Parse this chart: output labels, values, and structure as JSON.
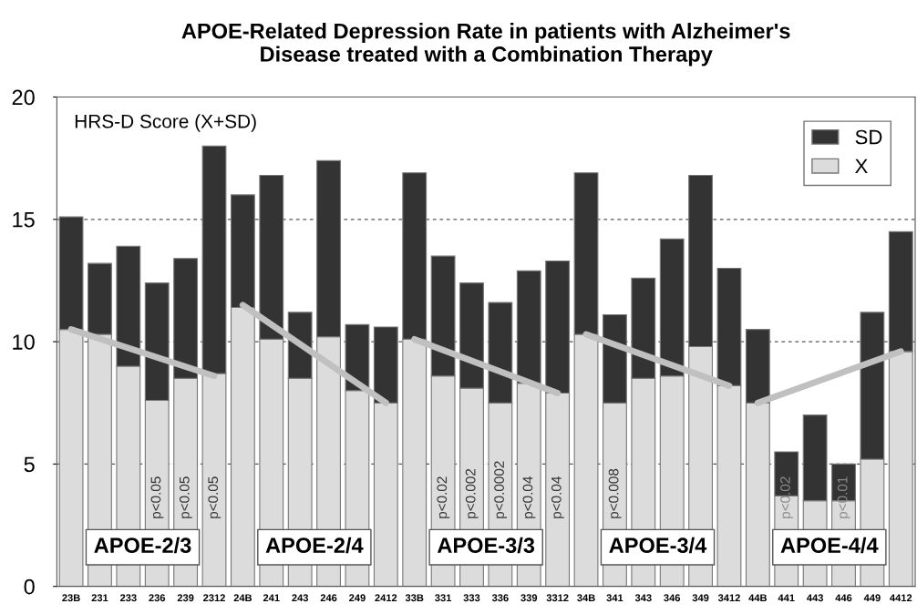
{
  "chart_data": {
    "type": "bar",
    "stacked": true,
    "title": "APOE-Related Depression Rate in patients with Alzheimer's\nDisease treated with a Combination Therapy",
    "ylabel": "HRS-D Score (X+SD)",
    "categories": [
      "23B",
      "231",
      "233",
      "236",
      "239",
      "2312",
      "24B",
      "241",
      "243",
      "246",
      "249",
      "2412",
      "33B",
      "331",
      "333",
      "336",
      "339",
      "3312",
      "34B",
      "341",
      "343",
      "346",
      "349",
      "3412",
      "44B",
      "441",
      "443",
      "446",
      "449",
      "4412"
    ],
    "series": [
      {
        "name": "X",
        "color": "#dcdcdc",
        "values": [
          10.5,
          10.3,
          9.0,
          7.6,
          8.5,
          8.7,
          11.4,
          10.1,
          8.5,
          10.2,
          8.0,
          7.5,
          10.1,
          8.6,
          8.1,
          7.5,
          8.3,
          7.9,
          10.3,
          7.5,
          8.5,
          8.6,
          9.8,
          8.2,
          7.5,
          3.7,
          3.5,
          3.5,
          5.2,
          9.6
        ],
        "value_labels": [
          null,
          null,
          null,
          "p<0.05",
          "p<0.05",
          "p<0.05",
          null,
          null,
          null,
          null,
          null,
          null,
          null,
          "p<0.02",
          "p<0.002",
          "p<0.0002",
          "p<0.04",
          "p<0.04",
          null,
          "p<0.008",
          null,
          null,
          null,
          null,
          null,
          "p<0.02",
          null,
          "p<0.01",
          null,
          null
        ]
      },
      {
        "name": "SD",
        "color": "#333333",
        "values": [
          4.6,
          2.9,
          4.9,
          4.8,
          4.9,
          9.3,
          4.6,
          6.7,
          2.7,
          7.2,
          2.7,
          3.1,
          6.8,
          4.9,
          4.3,
          4.1,
          4.6,
          5.4,
          6.6,
          3.6,
          4.1,
          5.6,
          7.0,
          4.8,
          3.0,
          1.8,
          3.5,
          1.5,
          6.0,
          4.9
        ]
      },
      {
        "type": "line",
        "color": "#c0c0c0",
        "values": [
          10.5,
          null,
          null,
          null,
          null,
          8.6,
          null,
          null,
          null,
          null,
          null,
          null,
          null,
          null,
          null,
          null,
          null,
          null,
          null,
          null,
          null,
          null,
          null,
          null,
          null,
          null,
          null,
          null,
          null,
          null
        ]
      },
      {
        "type": "line",
        "color": "#c0c0c0",
        "values": [
          null,
          null,
          null,
          null,
          null,
          null,
          11.5,
          null,
          null,
          null,
          null,
          7.5,
          null,
          null,
          null,
          null,
          null,
          null,
          null,
          null,
          null,
          null,
          null,
          null,
          null,
          null,
          null,
          null,
          null,
          null
        ]
      },
      {
        "type": "line",
        "color": "#c0c0c0",
        "values": [
          null,
          null,
          null,
          null,
          null,
          null,
          null,
          null,
          null,
          null,
          null,
          null,
          10.1,
          null,
          null,
          null,
          null,
          7.9,
          null,
          null,
          null,
          null,
          null,
          null,
          null,
          null,
          null,
          null,
          null,
          null
        ]
      },
      {
        "type": "line",
        "color": "#c0c0c0",
        "values": [
          null,
          null,
          null,
          null,
          null,
          null,
          null,
          null,
          null,
          null,
          null,
          null,
          null,
          null,
          null,
          null,
          null,
          null,
          10.3,
          null,
          null,
          null,
          null,
          8.2,
          null,
          null,
          null,
          null,
          null,
          null
        ]
      },
      {
        "type": "line",
        "color": "#c0c0c0",
        "values": [
          null,
          null,
          null,
          null,
          null,
          null,
          null,
          null,
          null,
          null,
          null,
          null,
          null,
          null,
          null,
          null,
          null,
          null,
          null,
          null,
          null,
          null,
          null,
          null,
          7.5,
          null,
          null,
          null,
          null,
          9.6
        ]
      }
    ],
    "ylim": [
      0,
      20
    ],
    "yticks": [
      0,
      5,
      10,
      15,
      20
    ],
    "grid": "y",
    "legend": "top right",
    "annotations": [
      "APOE-2/3",
      "APOE-2/4",
      "APOE-3/3",
      "APOE-3/4",
      "APOE-4/4"
    ]
  }
}
